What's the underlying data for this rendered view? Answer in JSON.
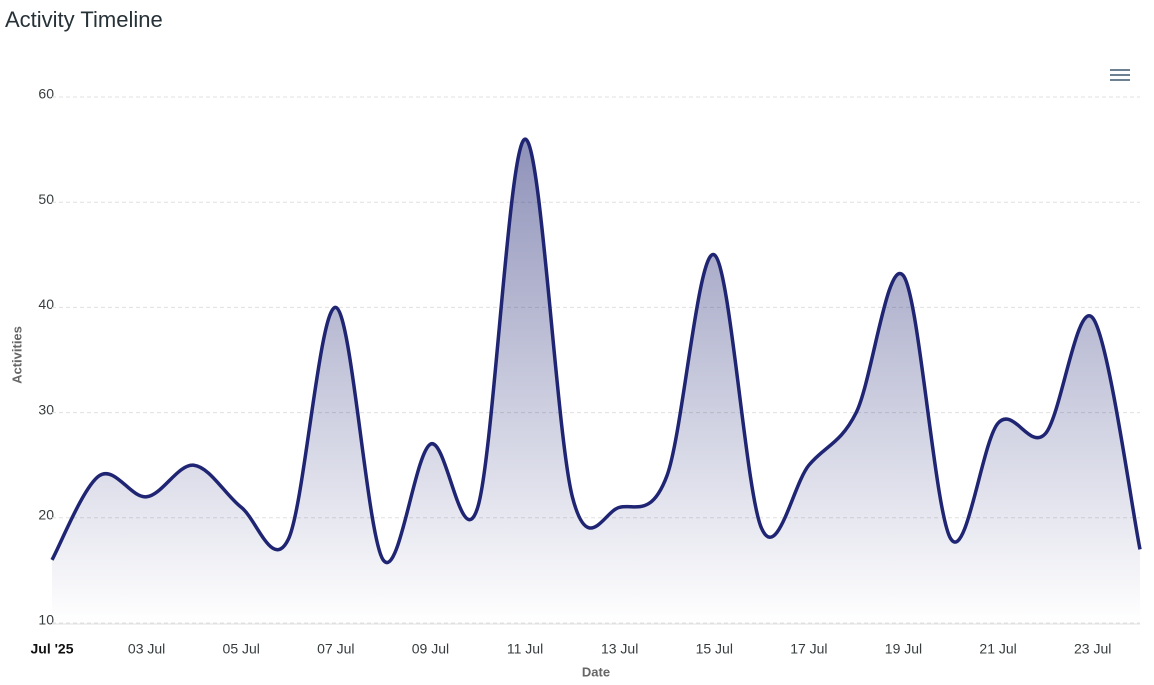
{
  "chart_data": {
    "type": "area",
    "title": "Activity Timeline",
    "x_label": "Date",
    "y_label": "Activities",
    "x": [
      "2025-07-01",
      "2025-07-02",
      "2025-07-03",
      "2025-07-04",
      "2025-07-05",
      "2025-07-06",
      "2025-07-07",
      "2025-07-08",
      "2025-07-09",
      "2025-07-10",
      "2025-07-11",
      "2025-07-12",
      "2025-07-13",
      "2025-07-14",
      "2025-07-15",
      "2025-07-16",
      "2025-07-17",
      "2025-07-18",
      "2025-07-19",
      "2025-07-20",
      "2025-07-21",
      "2025-07-22",
      "2025-07-23",
      "2025-07-24"
    ],
    "series": [
      {
        "name": "Activities",
        "color": "#1f2573",
        "values": [
          16,
          24,
          22,
          25,
          21,
          18,
          40,
          16,
          27,
          21,
          56,
          22,
          21,
          24,
          45,
          19,
          25,
          30,
          43,
          18,
          29,
          28,
          39,
          17
        ]
      }
    ],
    "xlim": [
      "2025-07-01",
      "2025-07-24"
    ],
    "xticks": [
      {
        "value": "2025-07-01",
        "label": "Jul '25"
      },
      {
        "value": "2025-07-03",
        "label": "03 Jul"
      },
      {
        "value": "2025-07-05",
        "label": "05 Jul"
      },
      {
        "value": "2025-07-07",
        "label": "07 Jul"
      },
      {
        "value": "2025-07-09",
        "label": "09 Jul"
      },
      {
        "value": "2025-07-11",
        "label": "11 Jul"
      },
      {
        "value": "2025-07-13",
        "label": "13 Jul"
      },
      {
        "value": "2025-07-15",
        "label": "15 Jul"
      },
      {
        "value": "2025-07-17",
        "label": "17 Jul"
      },
      {
        "value": "2025-07-19",
        "label": "19 Jul"
      },
      {
        "value": "2025-07-21",
        "label": "21 Jul"
      },
      {
        "value": "2025-07-23",
        "label": "23 Jul"
      }
    ],
    "ylim": [
      10,
      60
    ],
    "yticks": [
      10,
      20,
      30,
      40,
      50,
      60
    ],
    "grid": true
  }
}
